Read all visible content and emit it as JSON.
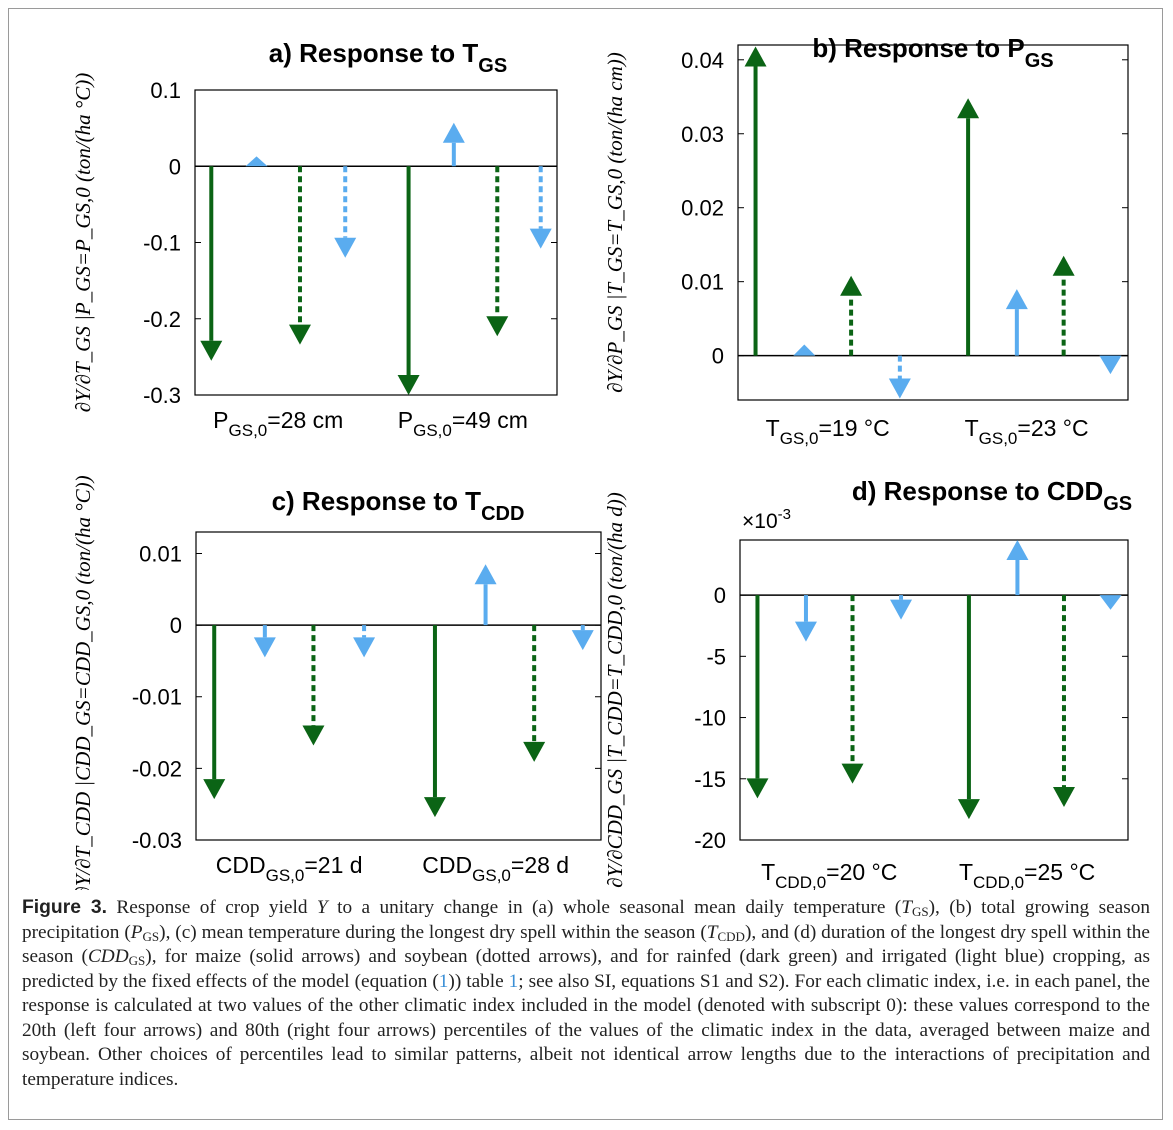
{
  "colors": {
    "rainfed": "#0b6415",
    "irrigated": "#5aacef",
    "axis": "#000000",
    "link": "#3a8fd6"
  },
  "caption": {
    "label": "Figure 3.",
    "p1": "Response of crop yield",
    "p2": "to a unitary change in (a) whole seasonal mean daily temperature (",
    "p3": "), (b) total growing season precipitation (",
    "p4": "), (c) mean temperature during the longest dry spell within the season (",
    "p5": "), and (d) duration of the longest dry spell within the season (",
    "p6": "), for maize (solid arrows) and soybean (dotted arrows), and for rainfed (dark green) and irrigated (light blue) cropping, as predicted by the fixed effects of the model (equation (",
    "p7": ")) table",
    "p8": "; see also SI, equations S1 and S2). For each climatic index, i.e. in each panel, the response is calculated at two values of the other climatic index included in the model (denoted with subscript 0): these values correspond to the 20th (left four arrows) and 80th (right four arrows) percentiles of the values of the climatic index in the data, averaged between maize and soybean. Other choices of percentiles lead to similar patterns, albeit not identical arrow lengths due to the interactions of precipitation and temperature indices.",
    "y_var": "Y",
    "t_gs": "T",
    "t_gs_sub": "GS",
    "p_gs": "P",
    "p_gs_sub": "GS",
    "t_cdd": "T",
    "t_cdd_sub": "CDD",
    "cdd_gs": "CDD",
    "cdd_gs_sub": "GS",
    "eq_ref": "1",
    "table_ref": "1"
  },
  "chart_data": [
    {
      "type": "arrow",
      "panel": "a",
      "title": "a) Response to T",
      "title_sub": "GS",
      "ylabel": "∂Y/∂T_GS |P_GS=P_GS,0 (ton/(ha °C))",
      "ylim": [
        -0.3,
        0.1
      ],
      "yticks": [
        0.1,
        0,
        -0.1,
        -0.2,
        -0.3
      ],
      "ytick_labels": [
        "0.1",
        "0",
        "-0.1",
        "-0.2",
        "-0.3"
      ],
      "grid": false,
      "groups": [
        {
          "label_main": "P",
          "label_sub": "GS,0",
          "label_rest": "=28 cm"
        },
        {
          "label_main": "P",
          "label_sub": "GS,0",
          "label_rest": "=49 cm"
        }
      ],
      "arrows": [
        {
          "group": 0,
          "crop": "maize",
          "cropping": "rainfed",
          "value": -0.255
        },
        {
          "group": 0,
          "crop": "maize",
          "cropping": "irrigated",
          "value": 0.013
        },
        {
          "group": 0,
          "crop": "soybean",
          "cropping": "rainfed",
          "value": -0.234
        },
        {
          "group": 0,
          "crop": "soybean",
          "cropping": "irrigated",
          "value": -0.12
        },
        {
          "group": 1,
          "crop": "maize",
          "cropping": "rainfed",
          "value": -0.3
        },
        {
          "group": 1,
          "crop": "maize",
          "cropping": "irrigated",
          "value": 0.057
        },
        {
          "group": 1,
          "crop": "soybean",
          "cropping": "rainfed",
          "value": -0.223
        },
        {
          "group": 1,
          "crop": "soybean",
          "cropping": "irrigated",
          "value": -0.108
        }
      ]
    },
    {
      "type": "arrow",
      "panel": "b",
      "title": "b) Response to P",
      "title_sub": "GS",
      "ylabel": "∂Y/∂P_GS |T_GS=T_GS,0 (ton/(ha cm))",
      "ylim": [
        -0.006,
        0.042
      ],
      "yticks": [
        0.04,
        0.03,
        0.02,
        0.01,
        0
      ],
      "ytick_labels": [
        "0.04",
        "0.03",
        "0.02",
        "0.01",
        "0"
      ],
      "grid": false,
      "groups": [
        {
          "label_main": "T",
          "label_sub": "GS,0",
          "label_rest": "=19 °C"
        },
        {
          "label_main": "T",
          "label_sub": "GS,0",
          "label_rest": "=23 °C"
        }
      ],
      "arrows": [
        {
          "group": 0,
          "crop": "maize",
          "cropping": "rainfed",
          "value": 0.0418
        },
        {
          "group": 0,
          "crop": "maize",
          "cropping": "irrigated",
          "value": 0.0015
        },
        {
          "group": 0,
          "crop": "soybean",
          "cropping": "rainfed",
          "value": 0.0108
        },
        {
          "group": 0,
          "crop": "soybean",
          "cropping": "irrigated",
          "value": -0.0058
        },
        {
          "group": 1,
          "crop": "maize",
          "cropping": "rainfed",
          "value": 0.0348
        },
        {
          "group": 1,
          "crop": "maize",
          "cropping": "irrigated",
          "value": 0.009
        },
        {
          "group": 1,
          "crop": "soybean",
          "cropping": "rainfed",
          "value": 0.0135
        },
        {
          "group": 1,
          "crop": "soybean",
          "cropping": "irrigated",
          "value": -0.0025
        }
      ]
    },
    {
      "type": "arrow",
      "panel": "c",
      "title": "c) Response to T",
      "title_sub": "CDD",
      "ylabel": "∂Y/∂T_CDD |CDD_GS=CDD_GS,0 (ton/(ha °C))",
      "ylim": [
        -0.03,
        0.013
      ],
      "yticks": [
        0.01,
        0,
        -0.01,
        -0.02,
        -0.03
      ],
      "ytick_labels": [
        "0.01",
        "0",
        "-0.01",
        "-0.02",
        "-0.03"
      ],
      "grid": false,
      "groups": [
        {
          "label_main": "CDD",
          "label_sub": "GS,0",
          "label_rest": "=21 d"
        },
        {
          "label_main": "CDD",
          "label_sub": "GS,0",
          "label_rest": "=28 d"
        }
      ],
      "arrows": [
        {
          "group": 0,
          "crop": "maize",
          "cropping": "rainfed",
          "value": -0.0243
        },
        {
          "group": 0,
          "crop": "maize",
          "cropping": "irrigated",
          "value": -0.0045
        },
        {
          "group": 0,
          "crop": "soybean",
          "cropping": "rainfed",
          "value": -0.0168
        },
        {
          "group": 0,
          "crop": "soybean",
          "cropping": "irrigated",
          "value": -0.0045
        },
        {
          "group": 1,
          "crop": "maize",
          "cropping": "rainfed",
          "value": -0.0268
        },
        {
          "group": 1,
          "crop": "maize",
          "cropping": "irrigated",
          "value": 0.0085
        },
        {
          "group": 1,
          "crop": "soybean",
          "cropping": "rainfed",
          "value": -0.0191
        },
        {
          "group": 1,
          "crop": "soybean",
          "cropping": "irrigated",
          "value": -0.0035
        }
      ]
    },
    {
      "type": "arrow",
      "panel": "d",
      "title": "d) Response to CDD",
      "title_sub": "GS",
      "ylabel": "∂Y/∂CDD_GS |T_CDD=T_CDD,0 (ton/(ha d))",
      "y_multiplier": "×10",
      "y_multiplier_exp": "-3",
      "ylim": [
        -20,
        4.5
      ],
      "yticks": [
        0,
        -5,
        -10,
        -15,
        -20
      ],
      "ytick_labels": [
        "0",
        "-5",
        "-10",
        "-15",
        "-20"
      ],
      "grid": false,
      "groups": [
        {
          "label_main": "T",
          "label_sub": "CDD,0",
          "label_rest": "=20 °C"
        },
        {
          "label_main": "T",
          "label_sub": "CDD,0",
          "label_rest": "=25 °C"
        }
      ],
      "arrows": [
        {
          "group": 0,
          "crop": "maize",
          "cropping": "rainfed",
          "value": -16.6
        },
        {
          "group": 0,
          "crop": "maize",
          "cropping": "irrigated",
          "value": -3.8
        },
        {
          "group": 0,
          "crop": "soybean",
          "cropping": "rainfed",
          "value": -15.4
        },
        {
          "group": 0,
          "crop": "soybean",
          "cropping": "irrigated",
          "value": -2.0
        },
        {
          "group": 1,
          "crop": "maize",
          "cropping": "rainfed",
          "value": -18.3
        },
        {
          "group": 1,
          "crop": "maize",
          "cropping": "irrigated",
          "value": 4.5
        },
        {
          "group": 1,
          "crop": "soybean",
          "cropping": "rainfed",
          "value": -17.3
        },
        {
          "group": 1,
          "crop": "soybean",
          "cropping": "irrigated",
          "value": -1.2
        }
      ]
    }
  ]
}
